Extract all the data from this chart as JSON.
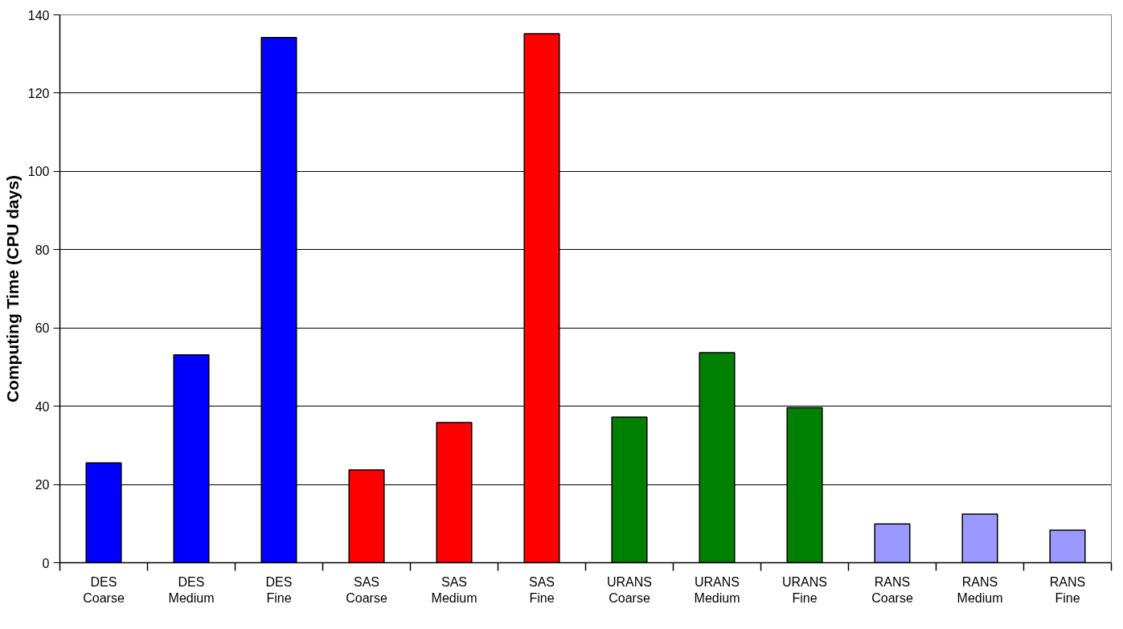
{
  "chart_data": {
    "type": "bar",
    "ylabel": "Computing Time (CPU days)",
    "categories": [
      "DES\nCoarse",
      "DES\nMedium",
      "DES\nFine",
      "SAS\nCoarse",
      "SAS\nMedium",
      "SAS\nFine",
      "URANS\nCoarse",
      "URANS\nMedium",
      "URANS\nFine",
      "RANS\nCoarse",
      "RANS\nMedium",
      "RANS\nFine"
    ],
    "values": [
      25.5,
      53.1,
      134.2,
      23.7,
      35.8,
      135.2,
      37.2,
      53.7,
      39.6,
      9.9,
      12.4,
      8.3
    ],
    "colors": [
      "#0000ff",
      "#0000ff",
      "#0000ff",
      "#ff0000",
      "#ff0000",
      "#ff0000",
      "#008000",
      "#008000",
      "#008000",
      "#9999ff",
      "#9999ff",
      "#9999ff"
    ],
    "ylim": [
      0,
      140
    ],
    "yticks": [
      0,
      20,
      40,
      60,
      80,
      100,
      120,
      140
    ],
    "grid": "y"
  }
}
